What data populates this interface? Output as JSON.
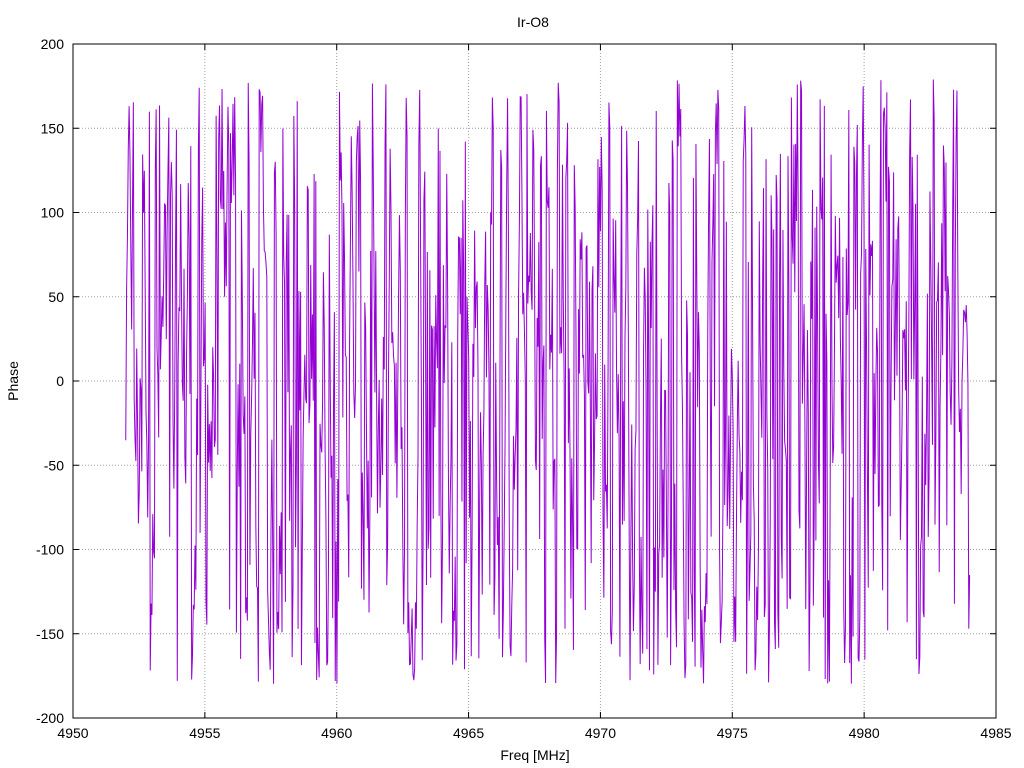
{
  "chart_data": {
    "type": "line",
    "title": "Ir-O8",
    "xlabel": "Freq [MHz]",
    "ylabel": "Phase",
    "xlim": [
      4950,
      4985
    ],
    "ylim": [
      -200,
      200
    ],
    "x_ticks": [
      4950,
      4955,
      4960,
      4965,
      4970,
      4975,
      4980,
      4985
    ],
    "y_ticks": [
      -200,
      -150,
      -100,
      -50,
      0,
      50,
      100,
      150,
      200
    ],
    "grid": true,
    "series": [
      {
        "color": "#9400d3",
        "x_start": 4952.0,
        "x_end": 4984.0,
        "point_count": 1000,
        "y_min": -180,
        "y_max": 180,
        "pattern": "noise"
      }
    ]
  }
}
